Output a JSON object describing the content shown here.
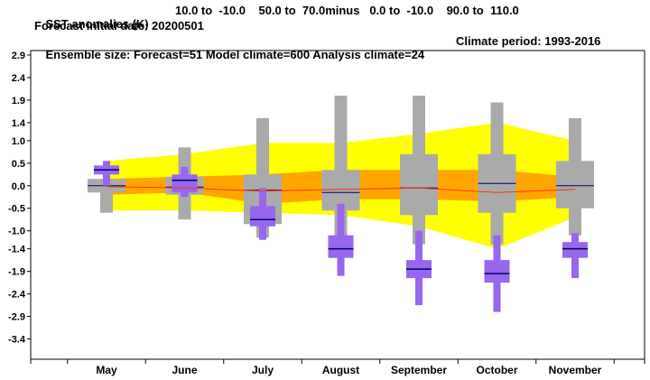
{
  "header": {
    "line1": {
      "title": "SST anomalies (K)",
      "region": "10.0 to  -10.0    50.0 to  70.0minus   0.0 to  -10.0    90.0 to  110.0"
    },
    "line2": "Forecast initial date: 20200501",
    "line3": {
      "ensemble": "Ensemble size: Forecast=51 Model climate=600 Analysis climate=24",
      "climate_period": "Climate period: 1993-2016"
    }
  },
  "chart_data": {
    "type": "box",
    "categories": [
      "May",
      "June",
      "July",
      "August",
      "September",
      "October",
      "November"
    ],
    "ylim": [
      -3.85,
      3.0
    ],
    "yticks": [
      "2.9",
      "2.4",
      "1.9",
      "1.4",
      "1.0",
      "0.5",
      "0.0",
      "-0.5",
      "-1.0",
      "-1.4",
      "-1.9",
      "-2.4",
      "-2.9",
      "-3.4"
    ],
    "ytick_values": [
      2.9,
      2.4,
      1.9,
      1.4,
      1.0,
      0.5,
      0.0,
      -0.5,
      -1.0,
      -1.4,
      -1.9,
      -2.4,
      -2.9,
      -3.4
    ],
    "model_climate": [
      {
        "min": -0.6,
        "q1": -0.15,
        "median": 0.0,
        "q3": 0.15,
        "max": 0.15
      },
      {
        "min": -0.75,
        "q1": -0.2,
        "median": -0.03,
        "q3": 0.2,
        "max": 0.85
      },
      {
        "min": -1.15,
        "q1": -0.85,
        "median": -0.1,
        "q3": 0.25,
        "max": 1.5
      },
      {
        "min": -1.2,
        "q1": -0.55,
        "median": -0.15,
        "q3": 0.35,
        "max": 2.0
      },
      {
        "min": -1.3,
        "q1": -0.65,
        "median": -0.05,
        "q3": 0.7,
        "max": 2.0
      },
      {
        "min": -1.3,
        "q1": -0.6,
        "median": 0.05,
        "q3": 0.7,
        "max": 1.85
      },
      {
        "min": -1.1,
        "q1": -0.5,
        "median": 0.0,
        "q3": 0.55,
        "max": 1.5
      }
    ],
    "forecast": [
      {
        "min": 0.0,
        "p10": 0.25,
        "median": 0.35,
        "p90": 0.45,
        "max": 0.55
      },
      {
        "min": -0.25,
        "p10": -0.15,
        "median": 0.12,
        "p90": 0.25,
        "max": 0.42
      },
      {
        "min": -1.2,
        "p10": -0.9,
        "median": -0.75,
        "p90": -0.45,
        "max": -0.05
      },
      {
        "min": -2.0,
        "p10": -1.6,
        "median": -1.4,
        "p90": -1.1,
        "max": -0.4
      },
      {
        "min": -2.65,
        "p10": -2.05,
        "median": -1.85,
        "p90": -1.65,
        "max": -1.0
      },
      {
        "min": -2.8,
        "p10": -2.15,
        "median": -1.95,
        "p90": -1.65,
        "max": -1.1
      },
      {
        "min": -2.05,
        "p10": -1.6,
        "median": -1.4,
        "p90": -1.25,
        "max": -1.05
      }
    ],
    "shading": {
      "outer_upper": [
        0.55,
        0.7,
        0.95,
        0.95,
        1.15,
        1.4,
        1.0
      ],
      "outer_lower": [
        -0.55,
        -0.55,
        -0.6,
        -0.65,
        -0.9,
        -1.4,
        -0.7
      ],
      "inner_upper": [
        0.15,
        0.2,
        0.25,
        0.35,
        0.35,
        0.35,
        0.2
      ],
      "inner_lower": [
        -0.2,
        -0.15,
        -0.4,
        -0.3,
        -0.3,
        -0.35,
        -0.25
      ]
    },
    "analysis_line": [
      -0.02,
      -0.05,
      -0.12,
      -0.08,
      -0.05,
      -0.15,
      -0.08
    ],
    "colors": {
      "outer_band": "#ffff00",
      "inner_band": "#ffa500",
      "model_box": "#aaaaaa",
      "forecast_box": "#9966ee",
      "median": "#000066",
      "analysis_line": "#ff3300",
      "axis": "#000000"
    }
  }
}
